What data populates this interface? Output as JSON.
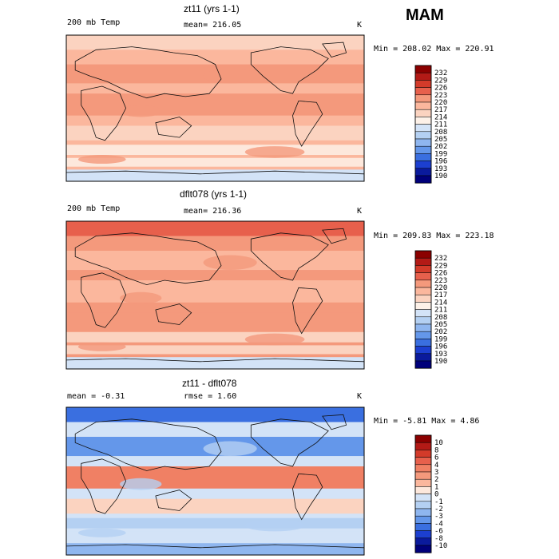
{
  "season": "MAM",
  "panel_colors": {
    "p1": {
      "base": "#fbb79d",
      "bands": [
        "#fbd3c0",
        "#f4997c",
        "#f4997c",
        "#fbd3c0",
        "#fde8dc",
        "#fde8dc",
        "#d3e3f7"
      ]
    },
    "p2": {
      "base": "#f4997c",
      "bands": [
        "#e7604c",
        "#fbb79d",
        "#fbb79d",
        "#f4997c",
        "#fbd3c0",
        "#fbd3c0",
        "#d3e3f7"
      ]
    },
    "p3": {
      "base": "#d3e3f7",
      "bands": [
        "#3a6fe0",
        "#6497ea",
        "#f08064",
        "#fbd3c0",
        "#b4d0f2",
        "#d3e3f7",
        "#8fb6ef"
      ]
    }
  },
  "chart_data": [
    {
      "type": "heatmap",
      "title": "zt11 (yrs 1-1)",
      "left_label": "200 mb Temp",
      "mean_label": "mean= 216.05",
      "units": "K",
      "minmax": "Min = 208.02  Max = 220.91",
      "colorbar": {
        "levels": [
          "232",
          "229",
          "226",
          "223",
          "220",
          "217",
          "214",
          "211",
          "208",
          "205",
          "202",
          "199",
          "196",
          "193",
          "190"
        ],
        "colors": [
          "#8b0000",
          "#b31a16",
          "#d33b2a",
          "#e7604c",
          "#f4997c",
          "#fbb79d",
          "#fbd3c0",
          "#fdf1e8",
          "#d3e3f7",
          "#b4d0f2",
          "#8fb6ef",
          "#6497ea",
          "#3a6fe0",
          "#1c3fd0",
          "#0a1a9c",
          "#00007a"
        ]
      }
    },
    {
      "type": "heatmap",
      "title": "dflt078 (yrs 1-1)",
      "left_label": "200 mb Temp",
      "mean_label": "mean= 216.36",
      "units": "K",
      "minmax": "Min = 209.83  Max = 223.18",
      "colorbar": {
        "levels": [
          "232",
          "229",
          "226",
          "223",
          "220",
          "217",
          "214",
          "211",
          "208",
          "205",
          "202",
          "199",
          "196",
          "193",
          "190"
        ],
        "colors": [
          "#8b0000",
          "#b31a16",
          "#d33b2a",
          "#e7604c",
          "#f4997c",
          "#fbb79d",
          "#fbd3c0",
          "#fdf1e8",
          "#d3e3f7",
          "#b4d0f2",
          "#8fb6ef",
          "#6497ea",
          "#3a6fe0",
          "#1c3fd0",
          "#0a1a9c",
          "#00007a"
        ]
      }
    },
    {
      "type": "heatmap",
      "title": "zt11 - dflt078",
      "left_label": "mean =  -0.31",
      "mean_label": "rmse =   1.60",
      "units": "K",
      "minmax": "Min =  -5.81  Max =   4.86",
      "colorbar": {
        "levels": [
          "10",
          "8",
          "6",
          "4",
          "3",
          "2",
          "1",
          "0",
          "-1",
          "-2",
          "-3",
          "-4",
          "-6",
          "-8",
          "-10"
        ],
        "colors": [
          "#8b0000",
          "#b31a16",
          "#d33b2a",
          "#e7604c",
          "#f08064",
          "#f4997c",
          "#fbb79d",
          "#fde8dc",
          "#d3e3f7",
          "#b4d0f2",
          "#8fb6ef",
          "#6497ea",
          "#3a6fe0",
          "#1c3fd0",
          "#0a1a9c",
          "#00007a"
        ]
      }
    }
  ]
}
